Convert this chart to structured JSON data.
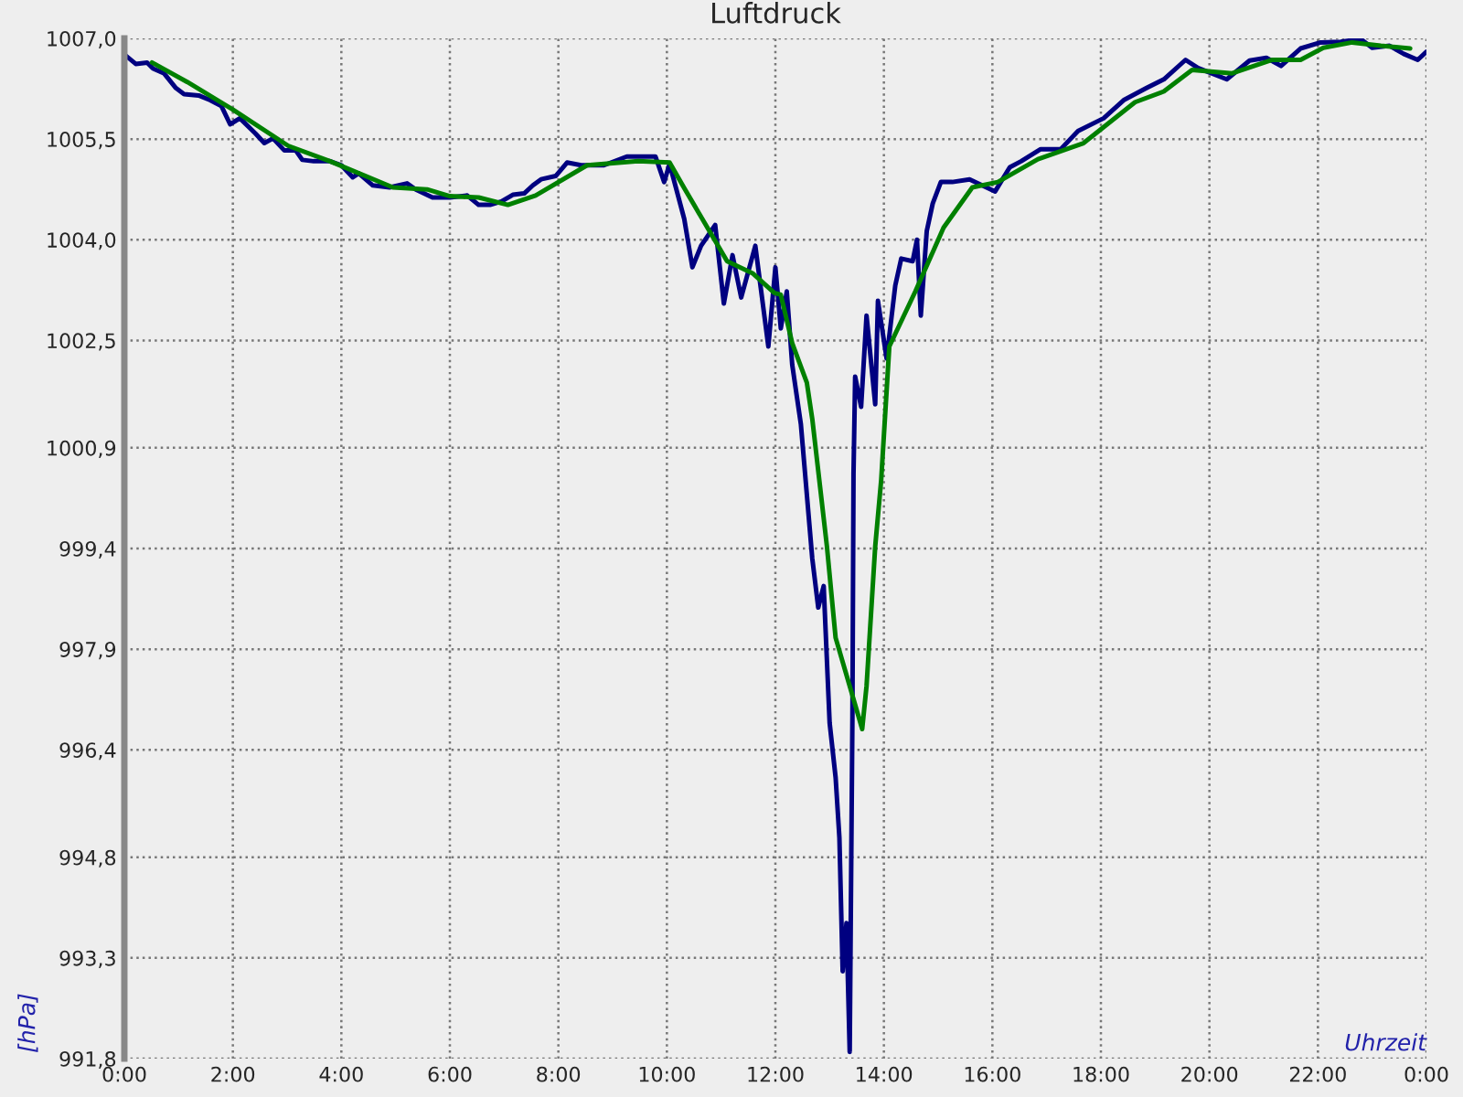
{
  "chart_data": {
    "type": "line",
    "title": "Luftdruck",
    "xlabel": "Uhrzeit",
    "ylabel": "[hPa]",
    "xlim": [
      0,
      24
    ],
    "ylim": [
      991.8,
      1007.0
    ],
    "xticks": [
      {
        "value": 0,
        "label": "0:00"
      },
      {
        "value": 2,
        "label": "2:00"
      },
      {
        "value": 4,
        "label": "4:00"
      },
      {
        "value": 6,
        "label": "6:00"
      },
      {
        "value": 8,
        "label": "8:00"
      },
      {
        "value": 10,
        "label": "10:00"
      },
      {
        "value": 12,
        "label": "12:00"
      },
      {
        "value": 14,
        "label": "14:00"
      },
      {
        "value": 16,
        "label": "16:00"
      },
      {
        "value": 18,
        "label": "18:00"
      },
      {
        "value": 20,
        "label": "20:00"
      },
      {
        "value": 22,
        "label": "22:00"
      },
      {
        "value": 24,
        "label": "0:00"
      }
    ],
    "yticks": [
      {
        "value": 991.8,
        "label": "991,8"
      },
      {
        "value": 993.3,
        "label": "993,3"
      },
      {
        "value": 994.8,
        "label": "994,8"
      },
      {
        "value": 996.4,
        "label": "996,4"
      },
      {
        "value": 997.9,
        "label": "997,9"
      },
      {
        "value": 999.4,
        "label": "999,4"
      },
      {
        "value": 1000.9,
        "label": "1000,9"
      },
      {
        "value": 1002.5,
        "label": "1002,5"
      },
      {
        "value": 1004.0,
        "label": "1004,0"
      },
      {
        "value": 1005.5,
        "label": "1005,5"
      },
      {
        "value": 1007.0,
        "label": "1007,0"
      }
    ],
    "grid": true,
    "legend": false,
    "marker": "none",
    "line_style": "solid",
    "series": [
      {
        "color": "#000080",
        "x": [
          0,
          0.21,
          0.42,
          0.53,
          0.73,
          0.95,
          1.1,
          1.37,
          1.58,
          1.79,
          1.95,
          2.13,
          2.42,
          2.58,
          2.74,
          2.95,
          3.16,
          3.28,
          3.49,
          3.79,
          4.0,
          4.21,
          4.32,
          4.58,
          4.89,
          5.21,
          5.37,
          5.68,
          6.0,
          6.32,
          6.53,
          6.74,
          6.95,
          7.16,
          7.37,
          7.53,
          7.68,
          7.95,
          8.16,
          8.42,
          8.84,
          9.26,
          9.79,
          9.95,
          10.05,
          10.32,
          10.47,
          10.63,
          10.89,
          11.05,
          11.21,
          11.37,
          11.63,
          11.87,
          12.0,
          12.1,
          12.21,
          12.31,
          12.47,
          12.68,
          12.79,
          12.89,
          13.0,
          13.11,
          13.18,
          13.24,
          13.31,
          13.37,
          13.42,
          13.44,
          13.47,
          13.58,
          13.68,
          13.84,
          13.89,
          14.05,
          14.21,
          14.32,
          14.53,
          14.61,
          14.68,
          14.79,
          14.9,
          15.05,
          15.26,
          15.58,
          16.05,
          16.32,
          16.53,
          16.89,
          17.26,
          17.58,
          18.05,
          18.42,
          18.84,
          19.16,
          19.56,
          19.79,
          20.32,
          20.74,
          21.05,
          21.32,
          21.68,
          22.05,
          22.42,
          22.79,
          23.0,
          23.32,
          23.58,
          23.84,
          24.0
        ],
        "values": [
          1006.76,
          1006.62,
          1006.64,
          1006.55,
          1006.48,
          1006.26,
          1006.17,
          1006.15,
          1006.08,
          1005.99,
          1005.72,
          1005.81,
          1005.58,
          1005.44,
          1005.51,
          1005.33,
          1005.33,
          1005.19,
          1005.17,
          1005.17,
          1005.11,
          1004.93,
          1004.99,
          1004.81,
          1004.78,
          1004.84,
          1004.75,
          1004.63,
          1004.63,
          1004.66,
          1004.52,
          1004.52,
          1004.57,
          1004.67,
          1004.69,
          1004.81,
          1004.9,
          1004.95,
          1005.15,
          1005.11,
          1005.11,
          1005.24,
          1005.24,
          1004.86,
          1005.13,
          1004.31,
          1003.59,
          1003.91,
          1004.22,
          1003.05,
          1003.77,
          1003.14,
          1003.91,
          1002.41,
          1003.59,
          1002.68,
          1003.23,
          1002.14,
          1001.25,
          999.25,
          998.52,
          998.84,
          996.8,
          995.99,
          995.09,
          993.1,
          993.82,
          991.9,
          996.9,
          1000.51,
          1001.96,
          1001.51,
          1002.87,
          1001.55,
          1003.09,
          1002.23,
          1003.32,
          1003.72,
          1003.68,
          1004.0,
          1002.87,
          1004.13,
          1004.54,
          1004.86,
          1004.86,
          1004.9,
          1004.72,
          1005.08,
          1005.17,
          1005.35,
          1005.35,
          1005.62,
          1005.81,
          1006.08,
          1006.26,
          1006.39,
          1006.68,
          1006.56,
          1006.39,
          1006.67,
          1006.71,
          1006.59,
          1006.85,
          1006.94,
          1006.95,
          1006.99,
          1006.86,
          1006.89,
          1006.77,
          1006.68,
          1006.8
        ]
      },
      {
        "color": "#008000",
        "x": [
          0.51,
          1.16,
          2.0,
          3.02,
          3.79,
          4.95,
          5.58,
          6.0,
          6.53,
          7.07,
          7.58,
          8.53,
          9.47,
          10.05,
          10.32,
          11.11,
          11.58,
          11.98,
          12.1,
          12.31,
          12.58,
          12.68,
          12.95,
          13.11,
          13.37,
          13.6,
          13.68,
          13.84,
          13.95,
          14.1,
          14.58,
          15.1,
          15.63,
          16.1,
          16.84,
          17.68,
          18.63,
          19.16,
          19.68,
          20.42,
          21.16,
          21.68,
          22.1,
          22.63,
          23.16,
          23.7
        ],
        "values": [
          1006.64,
          1006.35,
          1005.94,
          1005.4,
          1005.17,
          1004.78,
          1004.75,
          1004.65,
          1004.63,
          1004.52,
          1004.66,
          1005.11,
          1005.17,
          1005.15,
          1004.77,
          1003.68,
          1003.5,
          1003.21,
          1003.18,
          1002.46,
          1001.87,
          1001.33,
          999.43,
          998.07,
          997.35,
          996.71,
          997.35,
          999.43,
          1000.42,
          1002.41,
          1003.23,
          1004.18,
          1004.78,
          1004.86,
          1005.2,
          1005.44,
          1006.05,
          1006.21,
          1006.53,
          1006.48,
          1006.68,
          1006.68,
          1006.86,
          1006.94,
          1006.89,
          1006.85
        ]
      }
    ]
  }
}
